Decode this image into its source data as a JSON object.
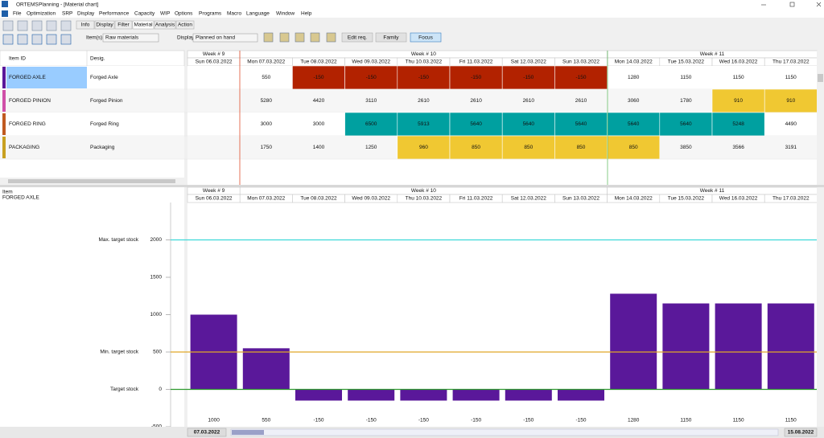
{
  "title_bar": {
    "app": "ORTEMS",
    "title": "Planning - [Material chart]"
  },
  "menu": [
    "File",
    "Optimization",
    "SRP",
    "Display",
    "Performance",
    "Capacity",
    "WIP",
    "Options",
    "Programs",
    "Macro",
    "Language",
    "Window",
    "Help"
  ],
  "tabs": [
    "Info",
    "Display",
    "Filter",
    "Material",
    "Analysis",
    "Action"
  ],
  "toolbar": {
    "items_label": "Item(s)",
    "items_value": "Raw materials",
    "display_label": "Display",
    "display_value": "Planned on hand",
    "buttons": [
      "Edit req.",
      "Family",
      "Focus"
    ]
  },
  "grid": {
    "columns": [
      "Item ID",
      "Desig."
    ],
    "weeks": [
      "Week # 9",
      "Week # 10",
      "Week # 11"
    ],
    "days": [
      "Sun 06.03.2022",
      "Mon 07.03.2022",
      "Tue 08.03.2022",
      "Wed 09.03.2022",
      "Thu 10.03.2022",
      "Fri 11.03.2022",
      "Sat 12.03.2022",
      "Sun 13.03.2022",
      "Mon 14.03.2022",
      "Tue 15.03.2022",
      "Wed 16.03.2022",
      "Thu 17.03.2022"
    ],
    "rows": [
      {
        "id": "FORGED AXLE",
        "desig": "Forged Axle",
        "color": "#5a189a",
        "cells": [
          null,
          550,
          -150,
          -150,
          -150,
          -150,
          -150,
          -150,
          1280,
          1150,
          1150,
          1150
        ],
        "cell_colors": [
          null,
          null,
          "#b22200",
          "#b22200",
          "#b22200",
          "#b22200",
          "#b22200",
          "#b22200",
          null,
          null,
          null,
          null
        ]
      },
      {
        "id": "FORGED PINION",
        "desig": "Forged Pinion",
        "color": "#d050a8",
        "cells": [
          null,
          5280,
          4420,
          3110,
          2610,
          2610,
          2610,
          2610,
          3060,
          1780,
          910,
          910
        ],
        "cell_colors": [
          null,
          null,
          null,
          null,
          null,
          null,
          null,
          null,
          null,
          null,
          "#f0c832",
          "#f0c832"
        ]
      },
      {
        "id": "FORGED RING",
        "desig": "Forged Ring",
        "color": "#c05a20",
        "cells": [
          null,
          3000,
          3000,
          6500,
          5913,
          5640,
          5640,
          5640,
          5640,
          5640,
          5248,
          4490
        ],
        "cell_colors": [
          null,
          null,
          null,
          "#00a0a0",
          "#00a0a0",
          "#00a0a0",
          "#00a0a0",
          "#00a0a0",
          "#00a0a0",
          "#00a0a0",
          "#00a0a0",
          null
        ]
      },
      {
        "id": "PACKAGING",
        "desig": "Packaging",
        "color": "#c8a020",
        "cells": [
          null,
          1750,
          1400,
          1250,
          960,
          850,
          850,
          850,
          850,
          3850,
          3566,
          3191
        ],
        "cell_colors": [
          null,
          null,
          null,
          null,
          "#f0c832",
          "#f0c832",
          "#f0c832",
          "#f0c832",
          "#f0c832",
          null,
          null,
          null
        ]
      }
    ]
  },
  "chart": {
    "type": "bar",
    "item_label": "Item",
    "item": "FORGED AXLE",
    "values": [
      1000,
      550,
      -150,
      -150,
      -150,
      -150,
      -150,
      -150,
      1280,
      1150,
      1150,
      1150
    ],
    "color": "#5a189a",
    "ylim": [
      -500,
      2500
    ],
    "yticks": [
      2000,
      1500,
      1000,
      500,
      0,
      -500
    ],
    "reference_lines": [
      {
        "label": "Max. target stock",
        "value": 2000,
        "color": "#3cd8d8"
      },
      {
        "label": "Min. target stock",
        "value": 500,
        "color": "#e0a828"
      },
      {
        "label": "Target stock",
        "value": 0,
        "color": "#2e9a2e"
      }
    ]
  },
  "scrollbar": {
    "start": "07.03.2022",
    "end": "15.08.2022"
  }
}
